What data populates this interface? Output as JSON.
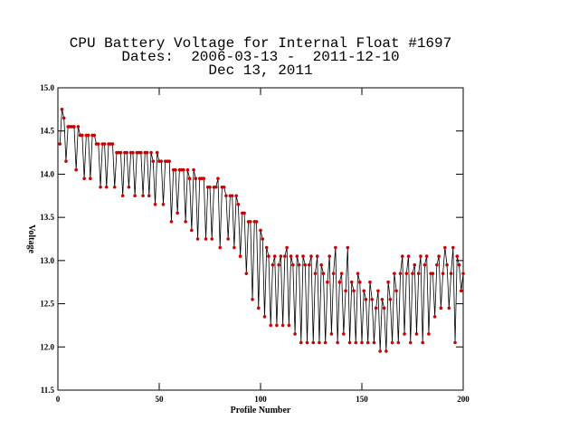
{
  "chart_data": {
    "type": "line",
    "title": [
      "CPU Battery Voltage for Internal Float #1697",
      "Dates:  2006-03-13 -  2011-12-10",
      "Dec 13, 2011"
    ],
    "xlabel": "Profile Number",
    "ylabel": "Voltage",
    "xlim": [
      0,
      200
    ],
    "xticks": [
      0,
      50,
      100,
      150,
      200
    ],
    "ylim": [
      11.5,
      15.0
    ],
    "yticks": [
      11.5,
      {
        "value": 12,
        "label": "12.0"
      },
      12.5,
      {
        "value": 13,
        "label": "13.0"
      },
      13.5,
      {
        "value": 14,
        "label": "14.0"
      },
      14.5,
      {
        "value": 15,
        "label": "15.0"
      }
    ],
    "line_color": "#000000",
    "marker_color": "#cc0000",
    "x": [
      1,
      2,
      3,
      4,
      5,
      6,
      7,
      8,
      9,
      10,
      11,
      12,
      13,
      14,
      15,
      16,
      17,
      18,
      19,
      20,
      21,
      22,
      23,
      24,
      25,
      26,
      27,
      28,
      29,
      30,
      31,
      32,
      33,
      34,
      35,
      36,
      37,
      38,
      39,
      40,
      41,
      42,
      43,
      44,
      45,
      46,
      47,
      48,
      49,
      50,
      51,
      52,
      53,
      54,
      55,
      56,
      57,
      58,
      59,
      60,
      61,
      62,
      63,
      64,
      65,
      66,
      67,
      68,
      69,
      70,
      71,
      72,
      73,
      74,
      75,
      76,
      77,
      78,
      79,
      80,
      81,
      82,
      83,
      84,
      85,
      86,
      87,
      88,
      89,
      90,
      91,
      92,
      93,
      94,
      95,
      96,
      97,
      98,
      99,
      100,
      101,
      102,
      103,
      104,
      105,
      106,
      107,
      108,
      109,
      110,
      111,
      112,
      113,
      114,
      115,
      116,
      117,
      118,
      119,
      120,
      121,
      122,
      123,
      124,
      125,
      126,
      127,
      128,
      129,
      130,
      131,
      132,
      133,
      134,
      135,
      136,
      137,
      138,
      139,
      140,
      141,
      142,
      143,
      144,
      145,
      146,
      147,
      148,
      149,
      150,
      151,
      152,
      153,
      154,
      155,
      156,
      157,
      158,
      159,
      160,
      161,
      162,
      163,
      164,
      165,
      166,
      167,
      168,
      169,
      170,
      171,
      172,
      173,
      174,
      175,
      176,
      177,
      178,
      179,
      180,
      181,
      182,
      183,
      184,
      185,
      186,
      187,
      188,
      189,
      190,
      191,
      192,
      193,
      194,
      195,
      196,
      197,
      198,
      199,
      200
    ],
    "values": [
      14.35,
      14.75,
      14.65,
      14.15,
      14.55,
      14.55,
      14.55,
      14.55,
      14.05,
      14.55,
      14.45,
      14.45,
      13.95,
      14.45,
      14.45,
      13.95,
      14.45,
      14.45,
      14.35,
      14.35,
      13.85,
      14.35,
      14.35,
      13.85,
      14.35,
      14.35,
      14.35,
      13.85,
      14.25,
      14.25,
      14.25,
      13.75,
      14.25,
      14.25,
      13.85,
      14.25,
      14.25,
      13.75,
      14.25,
      14.25,
      14.25,
      13.75,
      14.25,
      14.25,
      13.75,
      14.25,
      14.15,
      13.65,
      14.25,
      14.15,
      14.15,
      13.65,
      14.15,
      14.15,
      14.15,
      13.45,
      14.05,
      14.05,
      13.55,
      14.05,
      14.05,
      14.05,
      13.45,
      14.05,
      13.95,
      13.35,
      14.05,
      13.95,
      13.25,
      13.95,
      13.95,
      13.95,
      13.25,
      13.85,
      13.85,
      13.25,
      13.85,
      13.85,
      13.95,
      13.15,
      13.85,
      13.85,
      13.75,
      13.25,
      13.75,
      13.75,
      13.15,
      13.75,
      13.65,
      13.05,
      13.55,
      13.55,
      12.85,
      13.45,
      13.45,
      12.55,
      13.45,
      13.45,
      12.45,
      13.35,
      13.25,
      12.35,
      13.15,
      13.05,
      12.25,
      12.95,
      13.05,
      12.25,
      12.95,
      13.05,
      12.25,
      13.05,
      13.15,
      12.25,
      13.05,
      12.95,
      12.15,
      13.05,
      12.95,
      12.05,
      13.05,
      12.95,
      12.05,
      12.95,
      13.05,
      12.05,
      12.85,
      13.05,
      12.05,
      12.95,
      12.85,
      12.05,
      12.75,
      13.05,
      12.15,
      12.85,
      13.15,
      12.05,
      12.75,
      12.85,
      12.15,
      12.65,
      13.15,
      12.05,
      12.75,
      12.65,
      12.05,
      12.85,
      12.75,
      12.05,
      12.65,
      12.55,
      12.05,
      12.75,
      12.55,
      12.05,
      12.45,
      12.65,
      11.95,
      12.55,
      12.45,
      11.95,
      12.75,
      12.55,
      12.05,
      12.85,
      12.65,
      12.05,
      12.85,
      13.05,
      12.15,
      12.85,
      13.05,
      12.05,
      12.85,
      12.95,
      12.15,
      12.85,
      13.05,
      12.05,
      12.95,
      13.05,
      12.15,
      12.85,
      12.85,
      12.35,
      12.95,
      13.05,
      12.45,
      12.85,
      13.15,
      12.95,
      12.45,
      12.85,
      13.15,
      12.05,
      13.05,
      12.95,
      12.65,
      12.85
    ]
  }
}
